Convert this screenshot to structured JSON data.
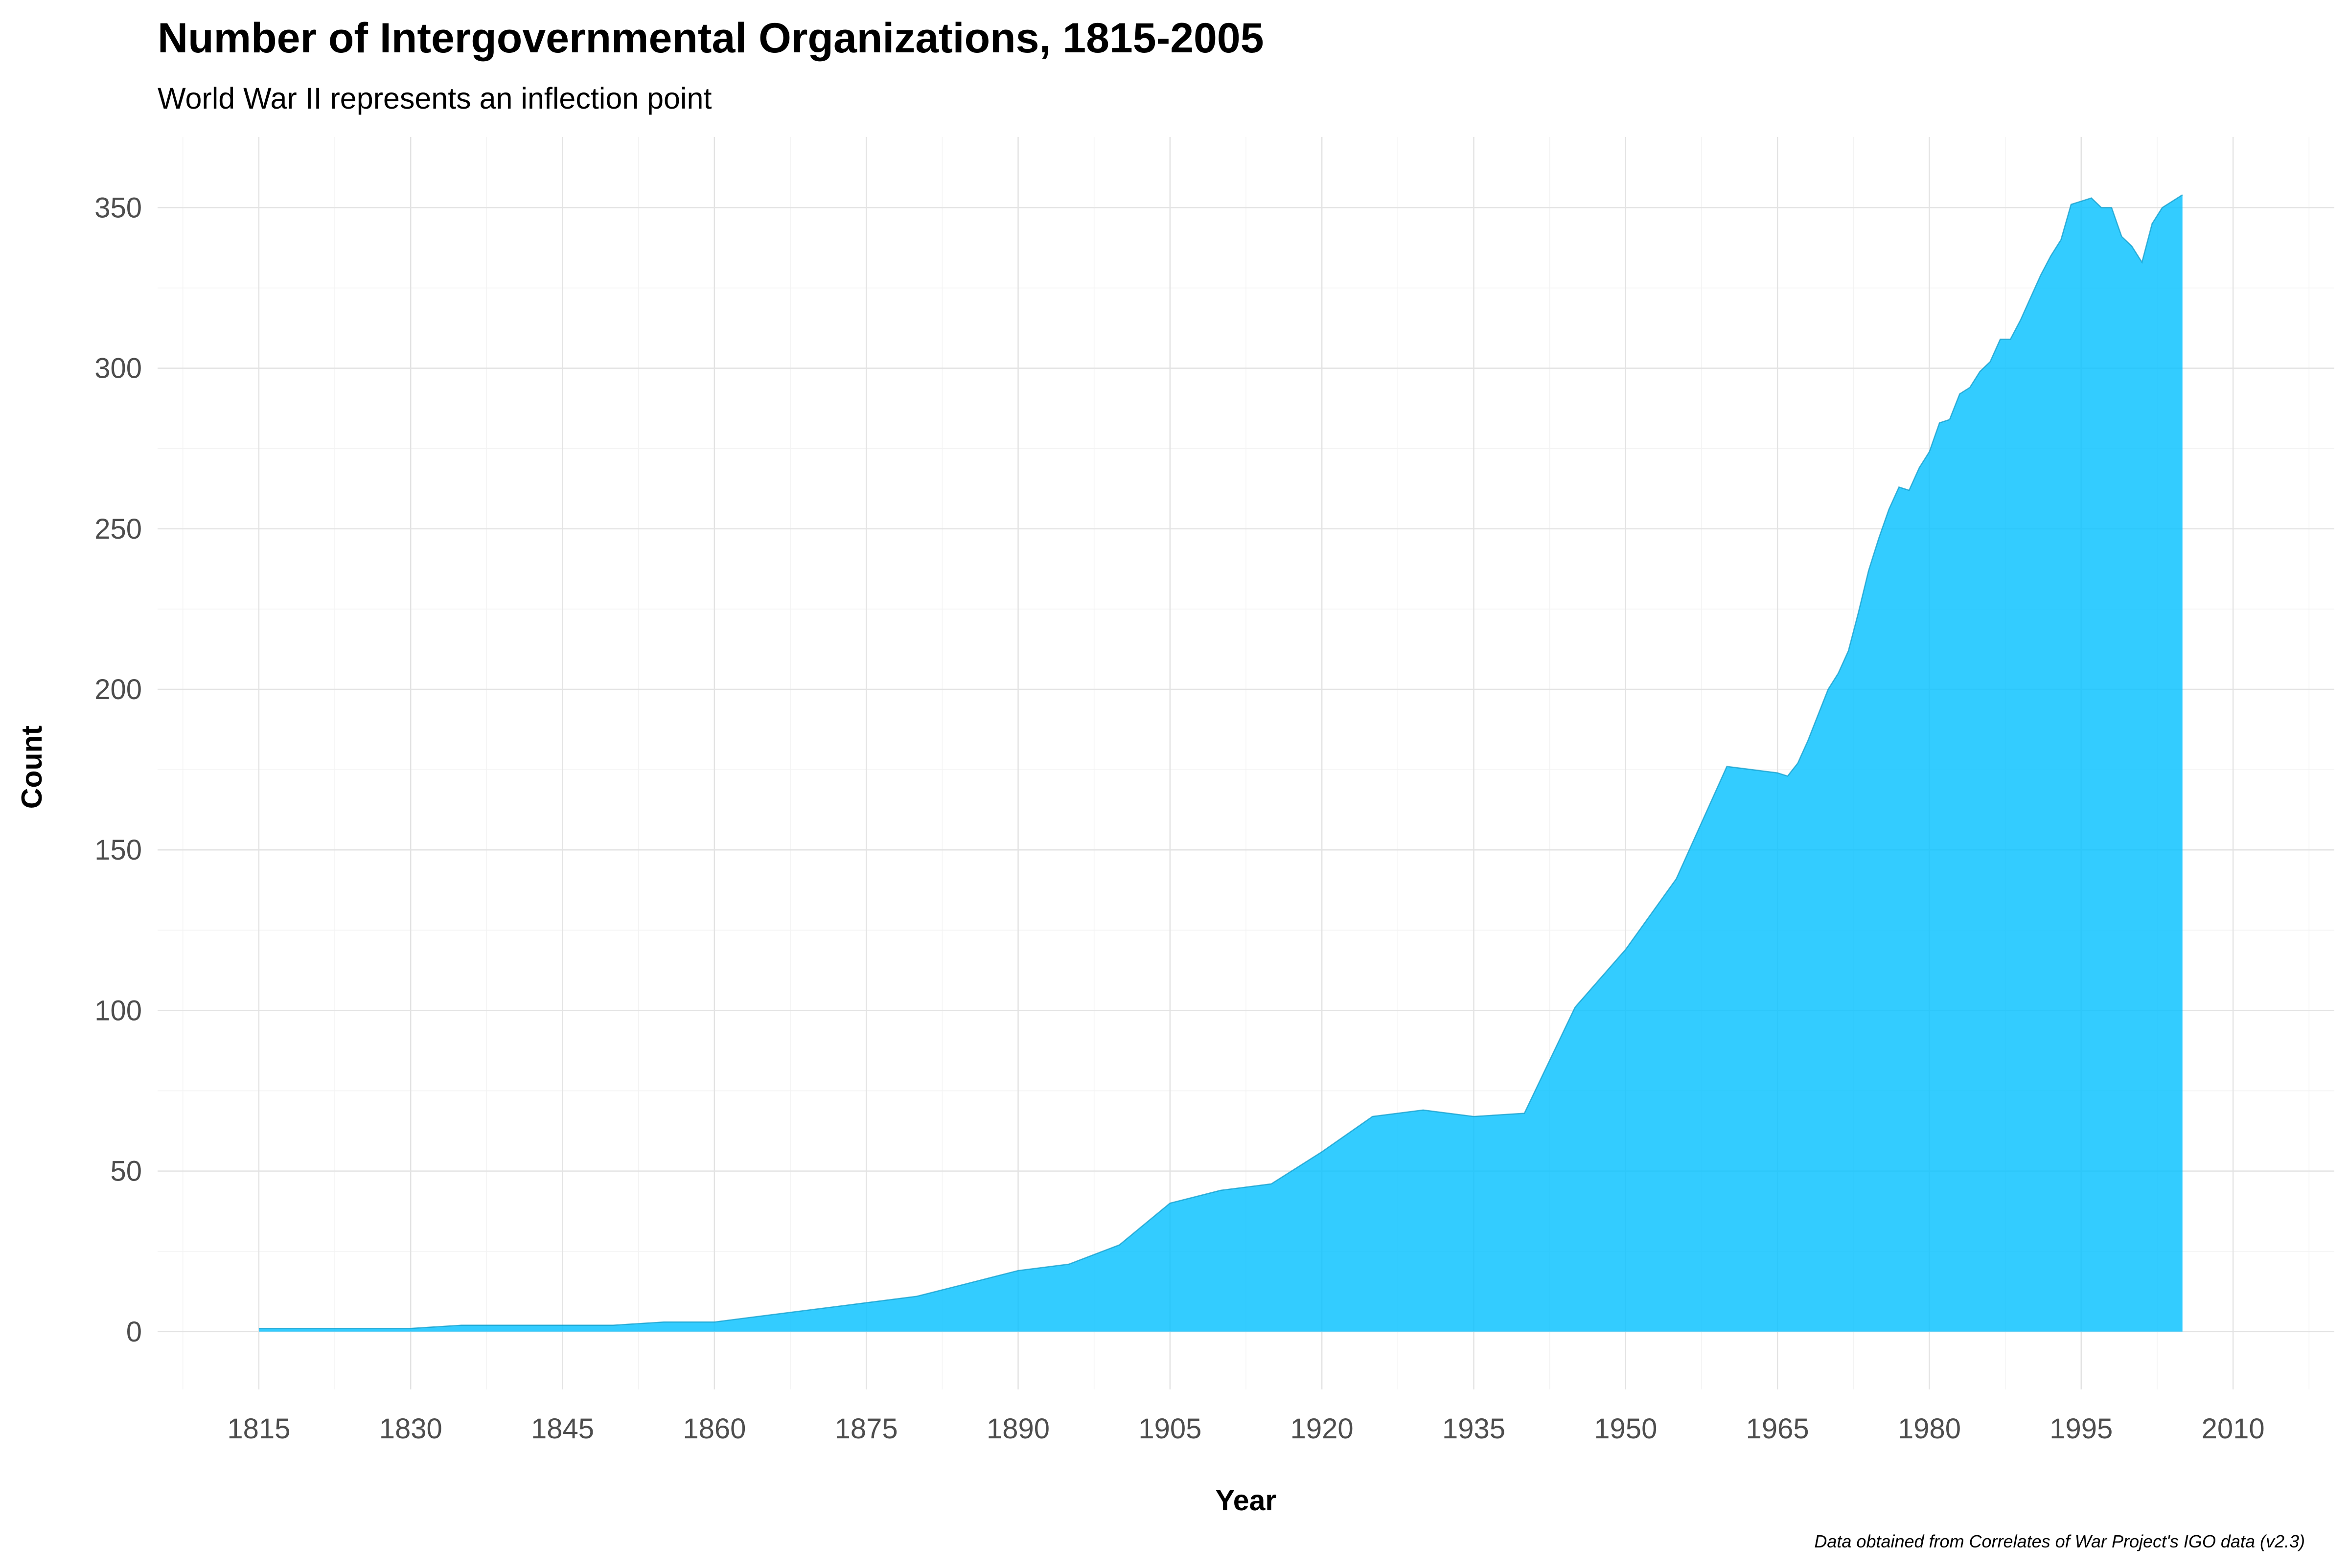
{
  "chart_data": {
    "type": "area",
    "title": "Number of Intergovernmental Organizations, 1815-2005",
    "subtitle": "World War II represents an inflection point",
    "xlabel": "Year",
    "ylabel": "Count",
    "caption": "Data obtained from Correlates of War Project's IGO data (v2.3)",
    "fill_color": "#00BFFF",
    "fill_opacity": 0.8,
    "grid": true,
    "xlim": [
      1805,
      2020
    ],
    "ylim": [
      -18,
      372
    ],
    "x_ticks": [
      1815,
      1830,
      1845,
      1860,
      1875,
      1890,
      1905,
      1920,
      1935,
      1950,
      1965,
      1980,
      1995,
      2010
    ],
    "y_ticks": [
      0,
      50,
      100,
      150,
      200,
      250,
      300,
      350
    ],
    "x_tick_labels": [
      "1815",
      "1830",
      "1845",
      "1860",
      "1875",
      "1890",
      "1905",
      "1920",
      "1935",
      "1950",
      "1965",
      "1980",
      "1995",
      "2010"
    ],
    "y_tick_labels": [
      "0",
      "50",
      "100",
      "150",
      "200",
      "250",
      "300",
      "350"
    ],
    "series": [
      {
        "x": [
          1815,
          1820,
          1825,
          1830,
          1835,
          1840,
          1845,
          1850,
          1855,
          1860,
          1865,
          1870,
          1875,
          1880,
          1885,
          1890,
          1895,
          1900,
          1905,
          1910,
          1915,
          1920,
          1925,
          1930,
          1935,
          1940,
          1945,
          1950,
          1955,
          1960,
          1965,
          1966,
          1967,
          1968,
          1969,
          1970,
          1971,
          1972,
          1973,
          1974,
          1975,
          1976,
          1977,
          1978,
          1979,
          1980,
          1981,
          1982,
          1983,
          1984,
          1985,
          1986,
          1987,
          1988,
          1989,
          1990,
          1991,
          1992,
          1993,
          1994,
          1995,
          1996,
          1997,
          1998,
          1999,
          2000,
          2001,
          2002,
          2003,
          2004,
          2005
        ],
        "y": [
          1,
          1,
          1,
          1,
          2,
          2,
          2,
          2,
          3,
          3,
          5,
          7,
          9,
          11,
          15,
          19,
          21,
          27,
          40,
          44,
          46,
          56,
          67,
          69,
          67,
          68,
          101,
          119,
          141,
          176,
          174,
          173,
          177,
          184,
          192,
          200,
          205,
          212,
          224,
          237,
          247,
          256,
          263,
          262,
          269,
          274,
          283,
          284,
          292,
          294,
          299,
          302,
          309,
          309,
          315,
          322,
          329,
          335,
          340,
          351,
          352,
          353,
          350,
          350,
          341,
          338,
          333,
          345,
          350,
          352,
          354
        ]
      }
    ]
  }
}
